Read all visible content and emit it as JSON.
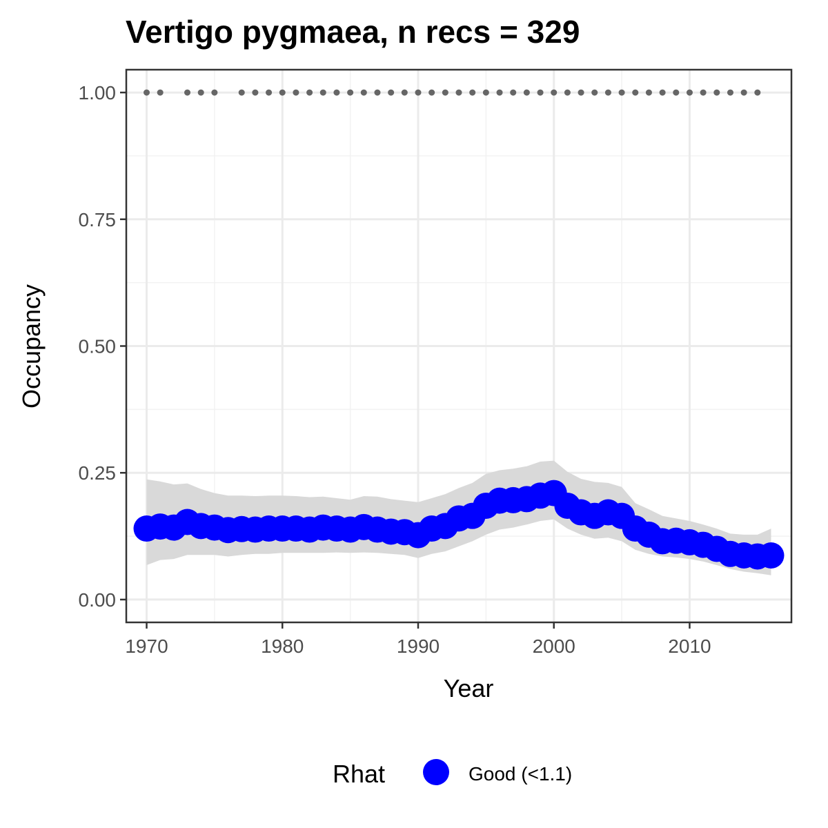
{
  "chart_data": {
    "type": "line",
    "title": "Vertigo pygmaea, n recs = 329",
    "xlabel": "Year",
    "ylabel": "Occupancy",
    "xlim": [
      1968.5,
      2017.5
    ],
    "ylim": [
      -0.045,
      1.045
    ],
    "x_ticks": [
      1970,
      1980,
      1990,
      2000,
      2010
    ],
    "x_tick_labels": [
      "1970",
      "1980",
      "1990",
      "2000",
      "2010"
    ],
    "y_ticks": [
      0,
      0.25,
      0.5,
      0.75,
      1.0
    ],
    "y_tick_labels": [
      "0.00",
      "0.25",
      "0.50",
      "0.75",
      "1.00"
    ],
    "grid": true,
    "legend": {
      "title": "Rhat",
      "position": "bottom",
      "items": [
        {
          "label": "Good (<1.1)",
          "color": "#0000ff"
        }
      ]
    },
    "colors": {
      "series": "#0000ff",
      "ribbon": "#d9d9d9",
      "records": "#666666"
    },
    "series": [
      {
        "name": "Good (<1.1)",
        "x": [
          1970,
          1971,
          1972,
          1973,
          1974,
          1975,
          1976,
          1977,
          1978,
          1979,
          1980,
          1981,
          1982,
          1983,
          1984,
          1985,
          1986,
          1987,
          1988,
          1989,
          1990,
          1991,
          1992,
          1993,
          1994,
          1995,
          1996,
          1997,
          1998,
          1999,
          2000,
          2001,
          2002,
          2003,
          2004,
          2005,
          2006,
          2007,
          2008,
          2009,
          2010,
          2011,
          2012,
          2013,
          2014,
          2015,
          2016
        ],
        "values": [
          0.14,
          0.144,
          0.142,
          0.153,
          0.145,
          0.142,
          0.137,
          0.139,
          0.138,
          0.14,
          0.14,
          0.14,
          0.138,
          0.142,
          0.14,
          0.138,
          0.143,
          0.138,
          0.134,
          0.133,
          0.127,
          0.14,
          0.145,
          0.16,
          0.165,
          0.185,
          0.195,
          0.196,
          0.198,
          0.205,
          0.21,
          0.185,
          0.172,
          0.165,
          0.172,
          0.165,
          0.14,
          0.128,
          0.115,
          0.116,
          0.113,
          0.108,
          0.1,
          0.09,
          0.087,
          0.085,
          0.087
        ],
        "lower": [
          0.068,
          0.078,
          0.08,
          0.088,
          0.088,
          0.088,
          0.085,
          0.088,
          0.09,
          0.09,
          0.092,
          0.092,
          0.092,
          0.092,
          0.093,
          0.092,
          0.093,
          0.092,
          0.09,
          0.088,
          0.082,
          0.09,
          0.095,
          0.105,
          0.115,
          0.128,
          0.138,
          0.142,
          0.148,
          0.155,
          0.158,
          0.14,
          0.128,
          0.12,
          0.122,
          0.115,
          0.098,
          0.09,
          0.085,
          0.083,
          0.08,
          0.075,
          0.068,
          0.06,
          0.055,
          0.052,
          0.048
        ],
        "upper": [
          0.237,
          0.233,
          0.227,
          0.229,
          0.218,
          0.21,
          0.205,
          0.205,
          0.204,
          0.205,
          0.205,
          0.204,
          0.202,
          0.203,
          0.2,
          0.197,
          0.204,
          0.203,
          0.198,
          0.195,
          0.192,
          0.2,
          0.208,
          0.22,
          0.23,
          0.248,
          0.255,
          0.258,
          0.263,
          0.272,
          0.274,
          0.252,
          0.238,
          0.232,
          0.23,
          0.222,
          0.19,
          0.178,
          0.165,
          0.16,
          0.155,
          0.148,
          0.14,
          0.13,
          0.128,
          0.128,
          0.14
        ]
      }
    ],
    "record_years": [
      1970,
      1971,
      1973,
      1974,
      1975,
      1977,
      1978,
      1979,
      1980,
      1981,
      1982,
      1983,
      1984,
      1985,
      1986,
      1987,
      1988,
      1989,
      1990,
      1991,
      1992,
      1993,
      1994,
      1995,
      1996,
      1997,
      1998,
      1999,
      2000,
      2001,
      2002,
      2003,
      2004,
      2005,
      2006,
      2007,
      2008,
      2009,
      2010,
      2011,
      2012,
      2013,
      2014,
      2015
    ],
    "record_value": 1.0
  }
}
